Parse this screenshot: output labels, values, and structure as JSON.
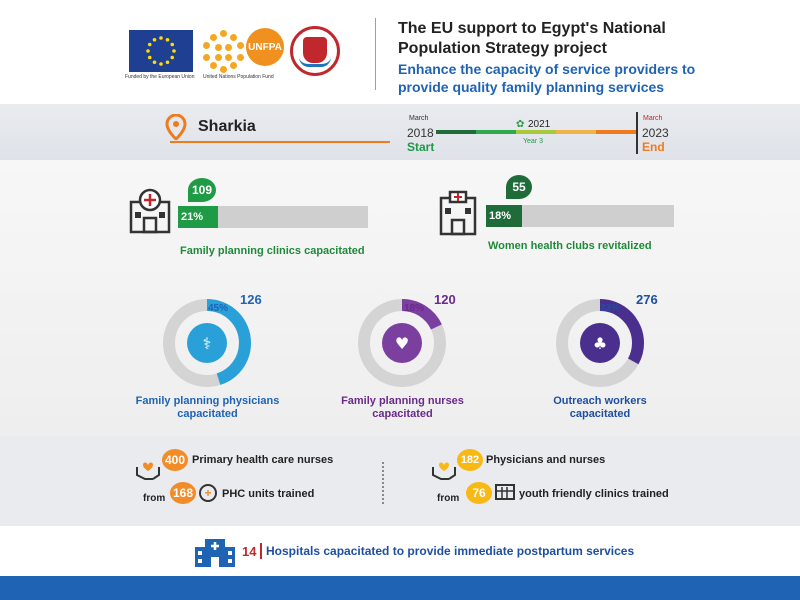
{
  "header": {
    "eu_caption": "Funded by the European Union",
    "unfpa_name": "UNFPA",
    "unfpa_caption": "United Nations Population Fund",
    "title": "The EU support to Egypt's National Population Strategy project",
    "subtitle": "Enhance the capacity of service providers to provide quality family planning services",
    "icons": [
      "eu-flag-logo",
      "un-logo",
      "unfpa-logo",
      "ministry-of-health-logo"
    ]
  },
  "location": {
    "region": "Sharkia",
    "icon": "map-pin-icon",
    "accent": "#f07b1d"
  },
  "timeline": {
    "start_month": "March",
    "start_year": "2018",
    "start_label": "Start",
    "mid_year": "2021",
    "mid_label": "Year 3",
    "end_month": "March",
    "end_year": "2023",
    "end_label": "End",
    "colors": [
      "#1f6b3a",
      "#2fa84f",
      "#a8c93a",
      "#f1b347",
      "#f07b1d"
    ]
  },
  "bars": [
    {
      "count": "109",
      "percent": "21%",
      "fraction": 0.21,
      "caption": "Family planning clinics capacitated",
      "icon": "clinic-building-icon",
      "color": "#1f9a45"
    },
    {
      "count": "55",
      "percent": "18%",
      "fraction": 0.18,
      "caption": "Women health clubs revitalized",
      "icon": "health-club-building-icon",
      "color": "#1f6b3a"
    }
  ],
  "donuts": [
    {
      "percent": "45%",
      "fraction": 0.45,
      "total": "126",
      "caption1": "Family planning physicians",
      "caption2": "capacitated",
      "color": "#2aa0d8",
      "text_color": "#1f63b5",
      "icon": "stethoscope-icon"
    },
    {
      "percent": "18%",
      "fraction": 0.18,
      "total": "120",
      "caption1": "Family planning nurses",
      "caption2": "capacitated",
      "color": "#7b3fa0",
      "text_color": "#6a2a8a",
      "icon": "nurse-icon"
    },
    {
      "percent": "33%",
      "fraction": 0.33,
      "total": "276",
      "caption1": "Outreach workers",
      "caption2": "capacitated",
      "color": "#4a2f8f",
      "text_color": "#1f4fa0",
      "icon": "hands-family-icon"
    }
  ],
  "stats": {
    "left": {
      "count": "400",
      "text": "Primary health care nurses",
      "from": "from",
      "units": "168",
      "units_text": "PHC units trained",
      "icon": "heart-hands-icon",
      "unit_icon": "cross-badge-icon"
    },
    "right": {
      "count": "182",
      "text": "Physicians and nurses",
      "from": "from",
      "units": "76",
      "units_text": "youth friendly clinics trained",
      "icon": "heart-hands-icon",
      "unit_icon": "clinic-grid-icon"
    }
  },
  "hospitals": {
    "count": "14",
    "text": "Hospitals capacitated to provide immediate postpartum services",
    "icon": "hospital-icon"
  }
}
